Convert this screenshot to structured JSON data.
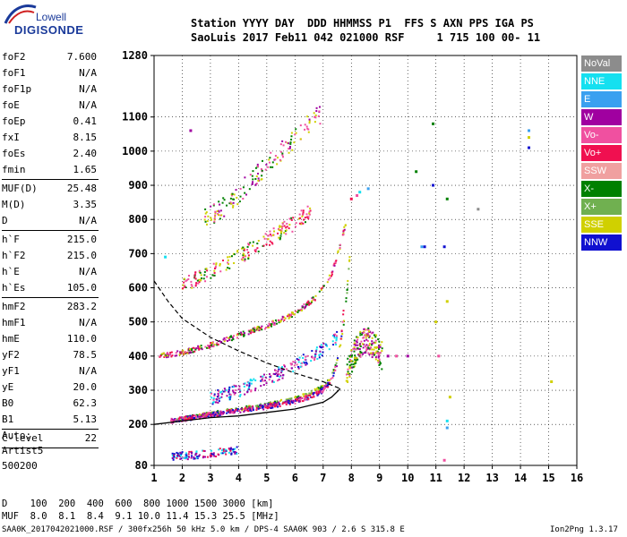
{
  "logo": {
    "line1": "Lowell",
    "line2": "DIGISONDE"
  },
  "header": {
    "row1": "Station YYYY DAY  DDD HHMMSS P1  FFS S AXN PPS IGA PS",
    "row2": "SaoLuis 2017 Feb11 042 021000 RSF     1 715 100 00- 11"
  },
  "params": [
    {
      "name": "foF2",
      "value": "7.600"
    },
    {
      "name": "foF1",
      "value": "N/A"
    },
    {
      "name": "foF1p",
      "value": "N/A"
    },
    {
      "name": "foE",
      "value": "N/A"
    },
    {
      "name": "foEp",
      "value": "0.41"
    },
    {
      "name": "fxI",
      "value": "8.15"
    },
    {
      "name": "foEs",
      "value": "2.40"
    },
    {
      "name": "fmin",
      "value": "1.65"
    },
    {
      "name": "MUF(D)",
      "value": "25.48",
      "sep": true
    },
    {
      "name": "M(D)",
      "value": "3.35"
    },
    {
      "name": "D",
      "value": "N/A"
    },
    {
      "name": "h`F",
      "value": "215.0",
      "sep": true
    },
    {
      "name": "h`F2",
      "value": "215.0"
    },
    {
      "name": "h`E",
      "value": "N/A"
    },
    {
      "name": "h`Es",
      "value": "105.0"
    },
    {
      "name": "hmF2",
      "value": "283.2",
      "sep": true
    },
    {
      "name": "hmF1",
      "value": "N/A"
    },
    {
      "name": "hmE",
      "value": "110.0"
    },
    {
      "name": "yF2",
      "value": "78.5"
    },
    {
      "name": "yF1",
      "value": "N/A"
    },
    {
      "name": "yE",
      "value": "20.0"
    },
    {
      "name": "B0",
      "value": "62.3"
    },
    {
      "name": "B1",
      "value": "5.13"
    },
    {
      "name": "C-level",
      "value": "22",
      "sep": true
    }
  ],
  "auto": {
    "l1": "Auto:",
    "l2": "Artist5",
    "l3": "500200"
  },
  "legend": [
    {
      "label": "NoVal",
      "color": "#8c8c8c"
    },
    {
      "label": "NNE",
      "color": "#15e0f0"
    },
    {
      "label": "E",
      "color": "#3aa0f0"
    },
    {
      "label": "W",
      "color": "#a000a0"
    },
    {
      "label": "Vo-",
      "color": "#f050a0"
    },
    {
      "label": "Vo+",
      "color": "#f01050"
    },
    {
      "label": "SSW",
      "color": "#f0a0a0"
    },
    {
      "label": "X-",
      "color": "#008000"
    },
    {
      "label": "X+",
      "color": "#70b050"
    },
    {
      "label": "SSE",
      "color": "#d0d000"
    },
    {
      "label": "NNW",
      "color": "#1010d0"
    }
  ],
  "footer": {
    "d_row": "D    100  200  400  600  800 1000 1500 3000 [km]",
    "muf_row": "MUF  8.0  8.1  8.4  9.1 10.0 11.4 15.3 25.5 [MHz]",
    "info": "SAA0K_2017042021000.RSF / 300fx256h 50 kHz 5.0 km / DPS-4 SAA0K 903 / 2.6 S 315.8 E",
    "version": "Ion2Png 1.3.17"
  },
  "chart_data": {
    "type": "scatter",
    "xlim": [
      1,
      16
    ],
    "ylim": [
      80,
      1280
    ],
    "xticks": [
      1,
      2,
      3,
      4,
      5,
      6,
      7,
      8,
      9,
      10,
      11,
      12,
      13,
      14,
      15,
      16
    ],
    "yticks": [
      80,
      200,
      300,
      400,
      500,
      600,
      700,
      800,
      900,
      1000,
      1100,
      1280
    ],
    "trace_base": {
      "x": [
        1.6,
        2,
        3,
        4,
        5,
        6,
        6.5,
        7,
        7.3,
        7.5,
        7.65,
        7.75
      ],
      "y": [
        210,
        215,
        228,
        240,
        252,
        268,
        280,
        300,
        330,
        380,
        460,
        560
      ]
    },
    "trace_x": {
      "x": [
        1.7,
        2,
        3,
        4,
        5,
        6,
        6.5,
        7,
        7.3,
        7.5,
        7.7,
        7.85,
        7.95
      ],
      "y": [
        212,
        217,
        232,
        245,
        258,
        276,
        290,
        310,
        340,
        390,
        470,
        590,
        700
      ]
    },
    "trace_2hop": {
      "x": [
        1.2,
        2,
        3,
        4,
        5,
        6,
        6.8,
        7.3,
        7.6,
        7.8
      ],
      "y": [
        400,
        410,
        432,
        460,
        488,
        525,
        575,
        640,
        720,
        790
      ]
    },
    "trace_3hop": {
      "x": [
        2,
        3,
        4,
        5,
        6,
        6.6
      ],
      "y": [
        610,
        645,
        690,
        740,
        790,
        830
      ]
    },
    "trace_4hop": {
      "x": [
        2.8,
        3.5,
        4.3,
        5,
        5.8,
        6.5,
        6.9
      ],
      "y": [
        800,
        840,
        900,
        960,
        1020,
        1080,
        1110
      ]
    },
    "trace_upper": {
      "x": [
        3,
        4,
        5,
        6,
        7,
        7.6
      ],
      "y": [
        275,
        300,
        330,
        370,
        420,
        460
      ]
    },
    "es_trace": {
      "x": [
        1.6,
        2,
        2.5,
        3,
        3.5,
        4
      ],
      "y": [
        105,
        108,
        110,
        115,
        120,
        125
      ]
    },
    "spread_region": {
      "x": [
        7.8,
        8.0,
        8.2,
        8.5,
        8.8,
        9.1
      ],
      "y": [
        340,
        390,
        420,
        450,
        430,
        400
      ]
    },
    "profile_line": {
      "x": [
        1,
        2,
        3,
        4,
        5,
        6,
        7,
        7.3,
        7.55,
        7.6
      ],
      "y": [
        200,
        210,
        220,
        225,
        235,
        245,
        265,
        280,
        300,
        305
      ]
    },
    "dashed_line": {
      "x": [
        1,
        1.5,
        2,
        3,
        4,
        5,
        6,
        7,
        7.6
      ],
      "y": [
        620,
        560,
        510,
        455,
        415,
        380,
        350,
        325,
        305
      ]
    },
    "scattered": [
      {
        "x": 10.9,
        "y": 1080,
        "color": "#008000"
      },
      {
        "x": 10.3,
        "y": 940,
        "color": "#008000"
      },
      {
        "x": 10.9,
        "y": 900,
        "color": "#1010d0"
      },
      {
        "x": 11.4,
        "y": 860,
        "color": "#008000"
      },
      {
        "x": 10.5,
        "y": 720,
        "color": "#3aa0f0"
      },
      {
        "x": 10.6,
        "y": 720,
        "color": "#1010d0"
      },
      {
        "x": 11.3,
        "y": 720,
        "color": "#1010d0"
      },
      {
        "x": 11.4,
        "y": 560,
        "color": "#d0d000"
      },
      {
        "x": 14.3,
        "y": 1060,
        "color": "#3aa0f0"
      },
      {
        "x": 14.3,
        "y": 1040,
        "color": "#d0d000"
      },
      {
        "x": 14.3,
        "y": 1010,
        "color": "#1010d0"
      },
      {
        "x": 9.3,
        "y": 400,
        "color": "#a000a0"
      },
      {
        "x": 9.6,
        "y": 400,
        "color": "#f050a0"
      },
      {
        "x": 10.0,
        "y": 400,
        "color": "#a000a0"
      },
      {
        "x": 11.1,
        "y": 400,
        "color": "#f050a0"
      },
      {
        "x": 11.5,
        "y": 280,
        "color": "#d0d000"
      },
      {
        "x": 11.4,
        "y": 210,
        "color": "#15e0f0"
      },
      {
        "x": 11.4,
        "y": 190,
        "color": "#3aa0f0"
      },
      {
        "x": 11.3,
        "y": 95,
        "color": "#f050a0"
      },
      {
        "x": 15.1,
        "y": 325,
        "color": "#d0d000"
      },
      {
        "x": 12.5,
        "y": 830,
        "color": "#8c8c8c"
      },
      {
        "x": 11.0,
        "y": 500,
        "color": "#d0d000"
      },
      {
        "x": 8.3,
        "y": 880,
        "color": "#15e0f0"
      },
      {
        "x": 8.6,
        "y": 890,
        "color": "#3aa0f0"
      },
      {
        "x": 8.2,
        "y": 870,
        "color": "#f050a0"
      },
      {
        "x": 8.0,
        "y": 860,
        "color": "#f01050"
      },
      {
        "x": 1.4,
        "y": 690,
        "color": "#15e0f0"
      },
      {
        "x": 2.3,
        "y": 1060,
        "color": "#a000a0"
      }
    ]
  }
}
